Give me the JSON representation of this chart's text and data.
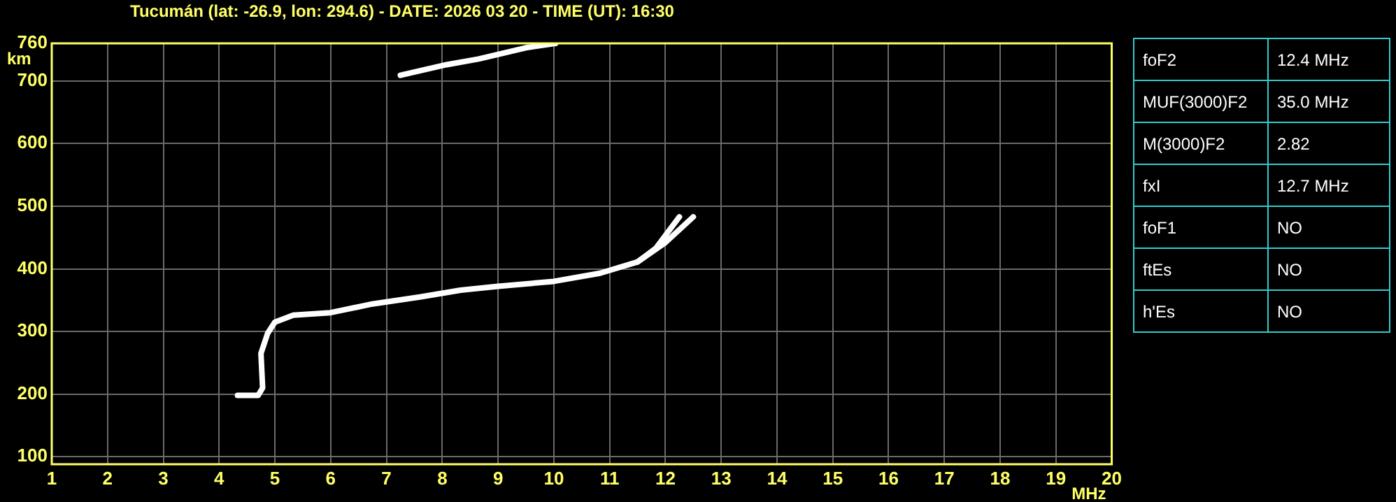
{
  "chart_data": [
    {
      "type": "line",
      "title": "Tucumán (lat: -26.9, lon: 294.6) - DATE: 2026 03 20 - TIME (UT): 16:30",
      "xlabel": "MHz",
      "ylabel": "km",
      "series": [
        {
          "color": "#ffffff",
          "x": [
            4.33,
            4.7,
            4.78,
            4.75,
            4.87,
            5.0,
            5.33,
            6.0,
            6.75,
            7.6,
            8.33,
            9.0,
            10.0,
            10.83,
            11.5,
            11.83,
            12.25
          ],
          "values": [
            198,
            198,
            210,
            265,
            297,
            315,
            326,
            330,
            344,
            355,
            366,
            372,
            380,
            393,
            411,
            433,
            483
          ]
        },
        {
          "color": "#ffffff",
          "x": [
            11.5,
            12.0,
            12.5
          ],
          "values": [
            411,
            442,
            483
          ]
        },
        {
          "color": "#ffffff",
          "x": [
            7.25,
            8.08,
            8.65,
            9.5,
            10.03
          ],
          "values": [
            709,
            726,
            735,
            753,
            760
          ]
        }
      ],
      "xlim": [
        1,
        20
      ],
      "xticks": [
        1,
        2,
        3,
        4,
        5,
        6,
        7,
        8,
        9,
        10,
        11,
        12,
        13,
        14,
        15,
        16,
        17,
        18,
        19,
        20
      ],
      "ylim": [
        88,
        760
      ],
      "yticks": [
        100,
        200,
        300,
        400,
        500,
        600,
        700,
        760
      ],
      "grid": true,
      "legend": false,
      "marker": "none",
      "line_style": "solid"
    },
    {
      "type": "other",
      "categories": [
        "foF2",
        "MUF(3000)F2",
        "M(3000)F2",
        "fxI",
        "foF1",
        "ftEs",
        "h'Es"
      ],
      "annotations": [
        "12.4 MHz",
        "35.0 MHz",
        "2.82",
        "12.7 MHz",
        "NO",
        "NO",
        "NO"
      ]
    }
  ]
}
